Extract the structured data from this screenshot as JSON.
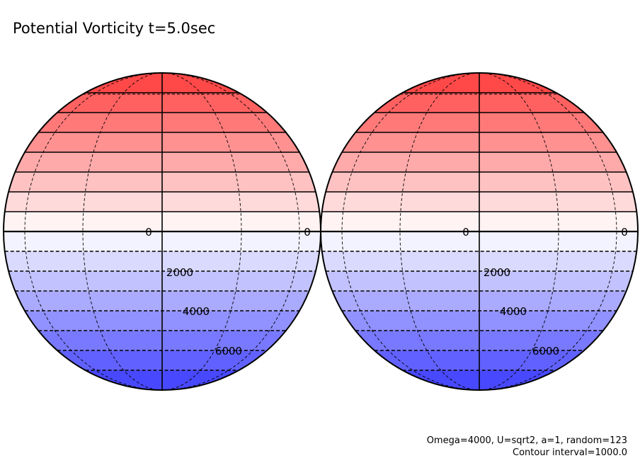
{
  "title": "Potential Vorticity t=5.0sec",
  "footer": {
    "line1": "Omega=4000, U=sqrt2, a=1, random=123",
    "line2": "Contour interval=1000.0"
  },
  "colors": {
    "positive": "#ff3c3c",
    "zero": "#ffffff",
    "negative": "#3c3cff",
    "contour": "#000000",
    "grid": "#000000"
  },
  "chart_data": {
    "type": "heatmap",
    "projection": "orthographic",
    "contour_interval": 1000.0,
    "field_range": [
      -8000,
      8000
    ],
    "contour_levels": [
      -8000,
      -7000,
      -6000,
      -5000,
      -4000,
      -3000,
      -2000,
      -1000,
      0,
      1000,
      2000,
      3000,
      4000,
      5000,
      6000,
      7000,
      8000
    ],
    "negative_contours_dashed": true,
    "panels": [
      {
        "labels": [
          {
            "text": "0",
            "value": 0
          },
          {
            "text": "0",
            "value": 0
          },
          {
            "text": "2000",
            "value": -2000
          },
          {
            "text": "4000",
            "value": -4000
          },
          {
            "text": "6000",
            "value": -6000
          }
        ]
      },
      {
        "labels": [
          {
            "text": "0",
            "value": 0
          },
          {
            "text": "0",
            "value": 0
          },
          {
            "text": "2000",
            "value": -2000
          },
          {
            "text": "4000",
            "value": -4000
          },
          {
            "text": "6000",
            "value": -6000
          }
        ]
      }
    ]
  }
}
